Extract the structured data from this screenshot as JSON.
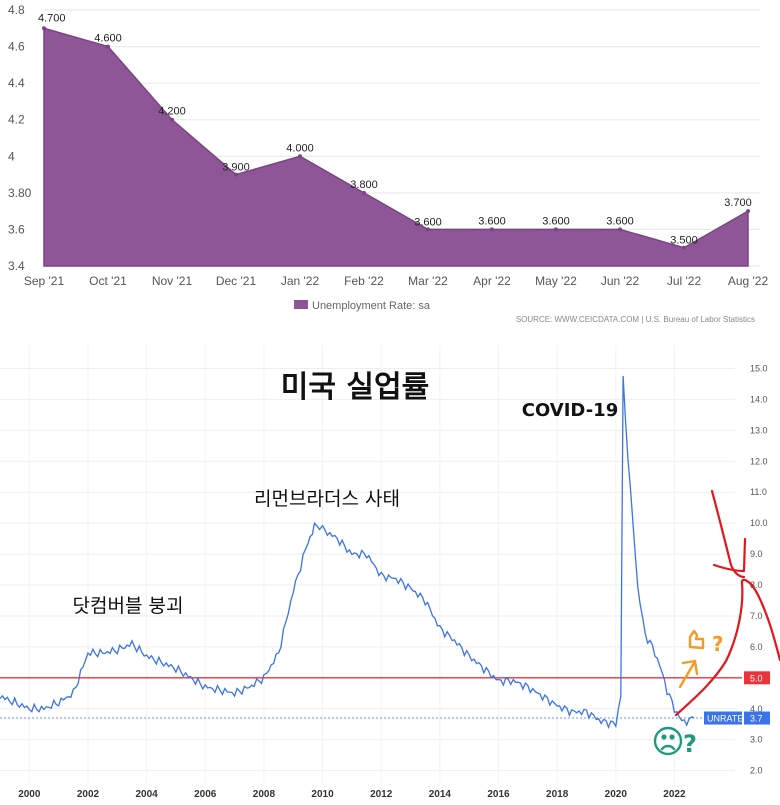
{
  "chart_data": [
    {
      "type": "area",
      "categories": [
        "Sep '21",
        "Oct '21",
        "Nov '21",
        "Dec '21",
        "Jan '22",
        "Feb '22",
        "Mar '22",
        "Apr '22",
        "May '22",
        "Jun '22",
        "Jul '22",
        "Aug '22"
      ],
      "values": [
        4.7,
        4.6,
        4.2,
        3.9,
        4.0,
        3.8,
        3.6,
        3.6,
        3.6,
        3.6,
        3.5,
        3.7
      ],
      "data_labels": [
        "4.700",
        "4.600",
        "4.200",
        "3.900",
        "4.000",
        "3.800",
        "3.600",
        "3.600",
        "3.600",
        "3.600",
        "3.500",
        "3.700"
      ],
      "yticks": [
        "3.4",
        "3.6",
        "3.80",
        "4",
        "4.2",
        "4.4",
        "4.6",
        "4.8"
      ],
      "ylim": [
        3.4,
        4.8
      ],
      "series": [
        {
          "name": "Unemployment Rate: sa",
          "values": [
            4.7,
            4.6,
            4.2,
            3.9,
            4.0,
            3.8,
            3.6,
            3.6,
            3.6,
            3.6,
            3.5,
            3.7
          ]
        }
      ],
      "legend": "bottom",
      "grid": true,
      "color": "#8e5696",
      "source": "SOURCE: WWW.CEICDATA.COM | U.S. Bureau of Labor Statistics"
    },
    {
      "type": "line",
      "title": "미국 실업률",
      "x_tick_labels": [
        "2000",
        "2002",
        "2004",
        "2006",
        "2008",
        "2010",
        "2012",
        "2014",
        "2016",
        "2018",
        "2020",
        "2022"
      ],
      "y_tick_labels": [
        "2.0",
        "3.0",
        "4.0",
        "5.0",
        "6.0",
        "7.0",
        "8.0",
        "9.0",
        "10.0",
        "11.0",
        "12.0",
        "13.0",
        "14.0",
        "15.0"
      ],
      "ylim": [
        1.6,
        15.5
      ],
      "xlim": [
        1999.0,
        2025.6
      ],
      "x": [
        1999.0,
        1999.5,
        2000.0,
        2000.5,
        2001.0,
        2001.5,
        2002.0,
        2002.5,
        2003.0,
        2003.5,
        2004.0,
        2004.5,
        2005.0,
        2005.5,
        2006.0,
        2006.5,
        2007.0,
        2007.5,
        2008.0,
        2008.5,
        2009.0,
        2009.5,
        2009.8,
        2010.0,
        2010.5,
        2011.0,
        2011.5,
        2012.0,
        2012.5,
        2013.0,
        2013.5,
        2014.0,
        2014.5,
        2015.0,
        2015.5,
        2016.0,
        2016.5,
        2017.0,
        2017.5,
        2018.0,
        2018.5,
        2019.0,
        2019.5,
        2020.0,
        2020.17,
        2020.25,
        2020.33,
        2020.5,
        2020.75,
        2021.0,
        2021.25,
        2021.5,
        2021.75,
        2022.0,
        2022.25,
        2022.5,
        2022.67
      ],
      "y": [
        4.4,
        4.2,
        4.0,
        4.0,
        4.2,
        4.5,
        5.8,
        5.8,
        5.9,
        6.1,
        5.7,
        5.5,
        5.3,
        5.0,
        4.7,
        4.6,
        4.5,
        4.7,
        5.0,
        5.8,
        7.8,
        9.4,
        10.0,
        9.8,
        9.5,
        9.0,
        9.0,
        8.3,
        8.2,
        7.9,
        7.5,
        6.6,
        6.2,
        5.7,
        5.3,
        4.9,
        4.9,
        4.7,
        4.4,
        4.1,
        3.9,
        3.9,
        3.6,
        3.5,
        4.4,
        14.7,
        13.3,
        11.1,
        7.9,
        6.4,
        6.0,
        5.4,
        4.6,
        4.0,
        3.6,
        3.6,
        3.7
      ],
      "line_color": "#3b73e8",
      "reference_lines": [
        {
          "value": 5.0,
          "label": "5.0",
          "color": "#e8343b"
        }
      ],
      "last_value_badge": {
        "name": "UNRATE",
        "value": "3.7"
      },
      "annotations": [
        "닷컴버블 붕괴",
        "리먼브라더스 사태",
        "COVID-19"
      ],
      "marks": {
        "question": "?"
      }
    }
  ]
}
